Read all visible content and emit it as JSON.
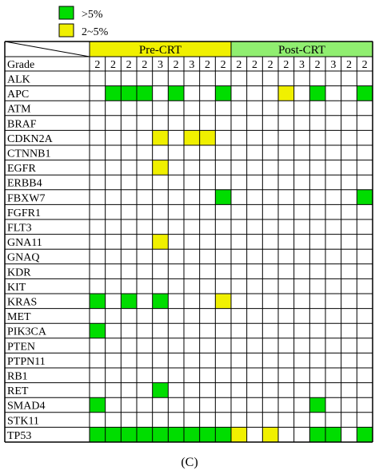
{
  "legend": {
    "items": [
      {
        "label": ">5%",
        "color": "#00dd00"
      },
      {
        "label": "2~5%",
        "color": "#f0f000"
      }
    ]
  },
  "caption": "(C)",
  "colors": {
    "high": "#00dd00",
    "mid": "#f0f000",
    "pre_header": "#f0f000",
    "post_header": "#90ee70",
    "grid": "#000000"
  },
  "chart_data": {
    "type": "heatmap",
    "row_header": "Grade",
    "groups": [
      {
        "name": "Pre-CRT",
        "columns": 9
      },
      {
        "name": "Post-CRT",
        "columns": 9
      }
    ],
    "grades": [
      2,
      2,
      2,
      2,
      3,
      2,
      3,
      2,
      2,
      2,
      2,
      2,
      2,
      3,
      2,
      3,
      2,
      2
    ],
    "genes": [
      "ALK",
      "APC",
      "ATM",
      "BRAF",
      "CDKN2A",
      "CTNNB1",
      "EGFR",
      "ERBB4",
      "FBXW7",
      "FGFR1",
      "FLT3",
      "GNA11",
      "GNAQ",
      "KDR",
      "KIT",
      "KRAS",
      "MET",
      "PIK3CA",
      "PTEN",
      "PTPN11",
      "RB1",
      "RET",
      "SMAD4",
      "STK11",
      "TP53"
    ],
    "legend_codes": {
      "2": ">5%",
      "1": "2~5%",
      "0": "none"
    },
    "values": [
      [
        0,
        0,
        0,
        0,
        0,
        0,
        0,
        0,
        0,
        0,
        0,
        0,
        0,
        0,
        0,
        0,
        0,
        0
      ],
      [
        0,
        2,
        2,
        2,
        0,
        2,
        0,
        0,
        2,
        0,
        0,
        0,
        1,
        0,
        2,
        0,
        0,
        2
      ],
      [
        0,
        0,
        0,
        0,
        0,
        0,
        0,
        0,
        0,
        0,
        0,
        0,
        0,
        0,
        0,
        0,
        0,
        0
      ],
      [
        0,
        0,
        0,
        0,
        0,
        0,
        0,
        0,
        0,
        0,
        0,
        0,
        0,
        0,
        0,
        0,
        0,
        0
      ],
      [
        0,
        0,
        0,
        0,
        1,
        0,
        1,
        1,
        0,
        0,
        0,
        0,
        0,
        0,
        0,
        0,
        0,
        0
      ],
      [
        0,
        0,
        0,
        0,
        0,
        0,
        0,
        0,
        0,
        0,
        0,
        0,
        0,
        0,
        0,
        0,
        0,
        0
      ],
      [
        0,
        0,
        0,
        0,
        1,
        0,
        0,
        0,
        0,
        0,
        0,
        0,
        0,
        0,
        0,
        0,
        0,
        0
      ],
      [
        0,
        0,
        0,
        0,
        0,
        0,
        0,
        0,
        0,
        0,
        0,
        0,
        0,
        0,
        0,
        0,
        0,
        0
      ],
      [
        0,
        0,
        0,
        0,
        0,
        0,
        0,
        0,
        2,
        0,
        0,
        0,
        0,
        0,
        0,
        0,
        0,
        2
      ],
      [
        0,
        0,
        0,
        0,
        0,
        0,
        0,
        0,
        0,
        0,
        0,
        0,
        0,
        0,
        0,
        0,
        0,
        0
      ],
      [
        0,
        0,
        0,
        0,
        0,
        0,
        0,
        0,
        0,
        0,
        0,
        0,
        0,
        0,
        0,
        0,
        0,
        0
      ],
      [
        0,
        0,
        0,
        0,
        1,
        0,
        0,
        0,
        0,
        0,
        0,
        0,
        0,
        0,
        0,
        0,
        0,
        0
      ],
      [
        0,
        0,
        0,
        0,
        0,
        0,
        0,
        0,
        0,
        0,
        0,
        0,
        0,
        0,
        0,
        0,
        0,
        0
      ],
      [
        0,
        0,
        0,
        0,
        0,
        0,
        0,
        0,
        0,
        0,
        0,
        0,
        0,
        0,
        0,
        0,
        0,
        0
      ],
      [
        0,
        0,
        0,
        0,
        0,
        0,
        0,
        0,
        0,
        0,
        0,
        0,
        0,
        0,
        0,
        0,
        0,
        0
      ],
      [
        2,
        0,
        2,
        0,
        2,
        0,
        0,
        0,
        1,
        0,
        0,
        0,
        0,
        0,
        0,
        0,
        0,
        0
      ],
      [
        0,
        0,
        0,
        0,
        0,
        0,
        0,
        0,
        0,
        0,
        0,
        0,
        0,
        0,
        0,
        0,
        0,
        0
      ],
      [
        2,
        0,
        0,
        0,
        0,
        0,
        0,
        0,
        0,
        0,
        0,
        0,
        0,
        0,
        0,
        0,
        0,
        0
      ],
      [
        0,
        0,
        0,
        0,
        0,
        0,
        0,
        0,
        0,
        0,
        0,
        0,
        0,
        0,
        0,
        0,
        0,
        0
      ],
      [
        0,
        0,
        0,
        0,
        0,
        0,
        0,
        0,
        0,
        0,
        0,
        0,
        0,
        0,
        0,
        0,
        0,
        0
      ],
      [
        0,
        0,
        0,
        0,
        0,
        0,
        0,
        0,
        0,
        0,
        0,
        0,
        0,
        0,
        0,
        0,
        0,
        0
      ],
      [
        0,
        0,
        0,
        0,
        2,
        0,
        0,
        0,
        0,
        0,
        0,
        0,
        0,
        0,
        0,
        0,
        0,
        0
      ],
      [
        2,
        0,
        0,
        0,
        0,
        0,
        0,
        0,
        0,
        0,
        0,
        0,
        0,
        0,
        2,
        0,
        0,
        0
      ],
      [
        0,
        0,
        0,
        0,
        0,
        0,
        0,
        0,
        0,
        0,
        0,
        0,
        0,
        0,
        0,
        0,
        0,
        0
      ],
      [
        2,
        2,
        2,
        2,
        2,
        2,
        2,
        2,
        2,
        1,
        0,
        1,
        0,
        0,
        2,
        2,
        0,
        2
      ]
    ]
  }
}
